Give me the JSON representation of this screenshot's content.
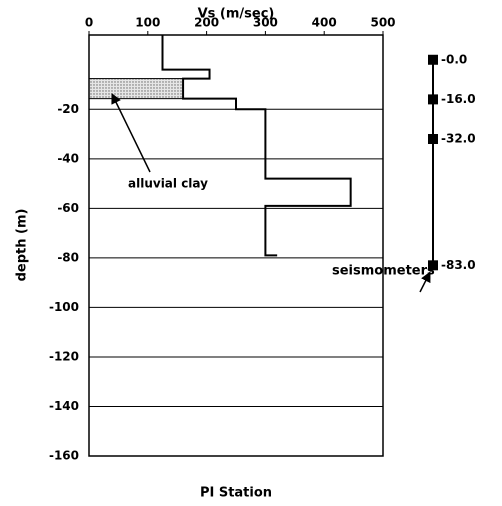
{
  "chart_data": {
    "type": "line",
    "title": "PI Station",
    "xlabel": "Vs (m/sec)",
    "ylabel": "depth (m)",
    "xlim": [
      0,
      500
    ],
    "xticks": [
      0,
      100,
      200,
      300,
      400,
      500
    ],
    "ylim": [
      -160,
      10
    ],
    "yticks": [
      -160,
      -140,
      -120,
      -100,
      -80,
      -60,
      -40,
      -20
    ],
    "grid": true,
    "color": "#000000",
    "x": [
      125,
      125,
      205,
      205,
      160,
      160,
      250,
      250,
      300,
      300,
      445,
      445,
      300,
      300,
      320
    ],
    "values": [
      10,
      -4,
      -4,
      -7.6,
      -7.6,
      -15.7,
      -15.7,
      -20,
      -20,
      -48,
      -48,
      -59,
      -59,
      -79,
      -79
    ],
    "clay": {
      "label": "alluvial clay",
      "x": [
        0,
        160
      ],
      "y": [
        -7.6,
        -15.7
      ]
    },
    "seismometers": {
      "label": "seismometers",
      "depths": [
        0,
        -16,
        -32,
        -83
      ],
      "value_labels": [
        "-0.0",
        "-16.0",
        "-32.0",
        "-83.0"
      ]
    }
  }
}
